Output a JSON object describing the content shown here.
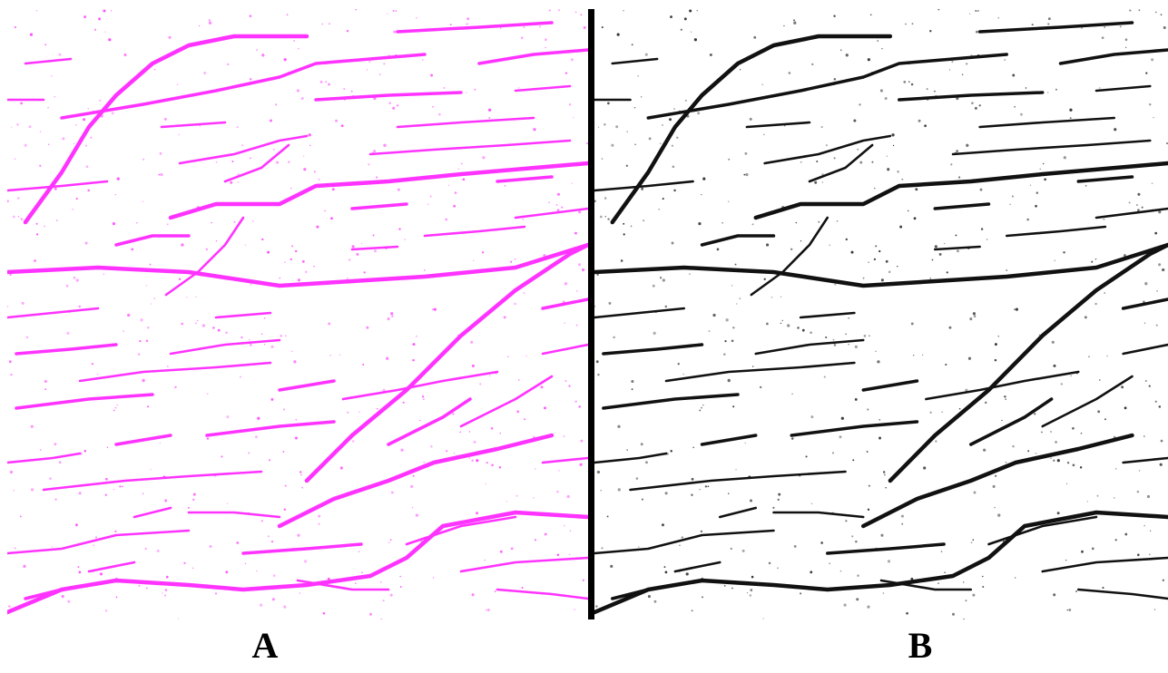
{
  "figure": {
    "panel_a": {
      "label": "A",
      "color": "#ff33ff"
    },
    "panel_b": {
      "label": "B",
      "color": "#111111"
    }
  }
}
